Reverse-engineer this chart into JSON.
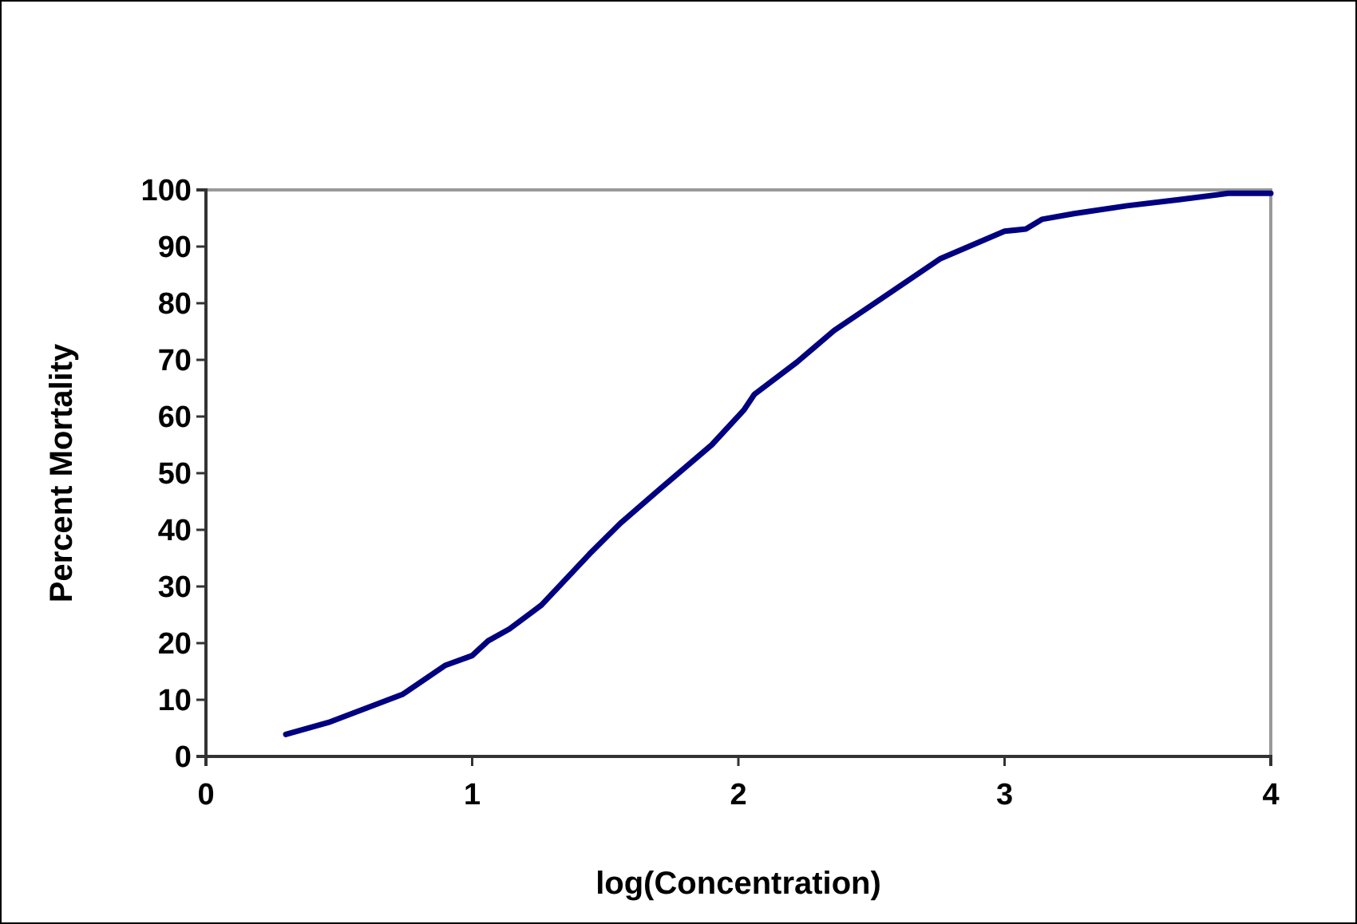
{
  "chart_data": {
    "type": "line",
    "xlabel": "log(Concentration)",
    "ylabel": "Percent Mortality",
    "xlim": [
      0,
      4
    ],
    "xticks": [
      0,
      1,
      2,
      3,
      4
    ],
    "ylim": [
      0,
      100
    ],
    "yticks": [
      0,
      10,
      20,
      30,
      40,
      50,
      60,
      70,
      80,
      90,
      100
    ],
    "grid": false,
    "marker": "none",
    "line_style": "solid",
    "series": [
      {
        "color": "#000080",
        "x": [
          0.3,
          0.46,
          0.74,
          0.9,
          1.0,
          1.06,
          1.14,
          1.26,
          1.44,
          1.56,
          1.7,
          1.9,
          2.02,
          2.06,
          2.22,
          2.36,
          2.54,
          2.76,
          3.0,
          3.08,
          3.14,
          3.26,
          3.46,
          3.66,
          3.84,
          4.0
        ],
        "values": [
          3.9,
          6.0,
          11.0,
          16.1,
          17.8,
          20.4,
          22.5,
          26.7,
          35.7,
          41.3,
          47.0,
          55.0,
          61.1,
          63.9,
          69.6,
          75.2,
          80.9,
          87.9,
          92.7,
          93.1,
          94.8,
          95.8,
          97.2,
          98.3,
          99.4,
          99.4
        ]
      }
    ]
  }
}
